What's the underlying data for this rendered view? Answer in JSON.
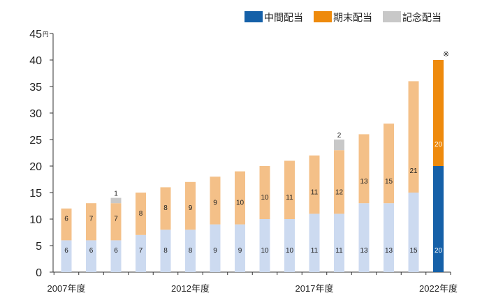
{
  "chart_data": {
    "type": "bar",
    "stacked": true,
    "y_unit": "円",
    "ylim": [
      0,
      45
    ],
    "y_ticks": [
      0,
      5,
      10,
      15,
      20,
      25,
      30,
      35,
      40,
      45
    ],
    "categories": [
      "2007",
      "2008",
      "2009",
      "2010",
      "2011",
      "2012",
      "2013",
      "2014",
      "2015",
      "2016",
      "2017",
      "2018",
      "2019",
      "2020",
      "2021",
      "2022"
    ],
    "x_tick_labels": [
      {
        "index": 0,
        "text": "2007年度"
      },
      {
        "index": 5,
        "text": "2012年度"
      },
      {
        "index": 10,
        "text": "2017年度"
      },
      {
        "index": 15,
        "text": "2022年度"
      }
    ],
    "series": [
      {
        "name": "中間配当",
        "values": [
          6,
          6,
          6,
          7,
          8,
          8,
          9,
          9,
          10,
          10,
          11,
          11,
          13,
          13,
          15,
          20
        ]
      },
      {
        "name": "期末配当",
        "values": [
          6,
          7,
          7,
          8,
          8,
          9,
          9,
          10,
          10,
          11,
          11,
          12,
          13,
          15,
          21,
          20
        ]
      },
      {
        "name": "記念配当",
        "values": [
          0,
          0,
          1,
          0,
          0,
          0,
          0,
          0,
          0,
          0,
          0,
          2,
          0,
          0,
          0,
          0
        ]
      }
    ],
    "colors": {
      "interim_light": "#ccdaf0",
      "final_light": "#f4c088",
      "commemorative": "#c8c8c8",
      "interim_highlight": "#1560a8",
      "final_highlight": "#ee8a0c",
      "legend_interim": "#1560a8",
      "legend_final": "#ee8a0c",
      "legend_commemorative": "#c8c8c8",
      "axis": "#333333",
      "label_on_highlight": "#ffffff"
    },
    "highlight_index": 15,
    "annotation": "※",
    "legend_placement": "top-right",
    "grid": false
  }
}
